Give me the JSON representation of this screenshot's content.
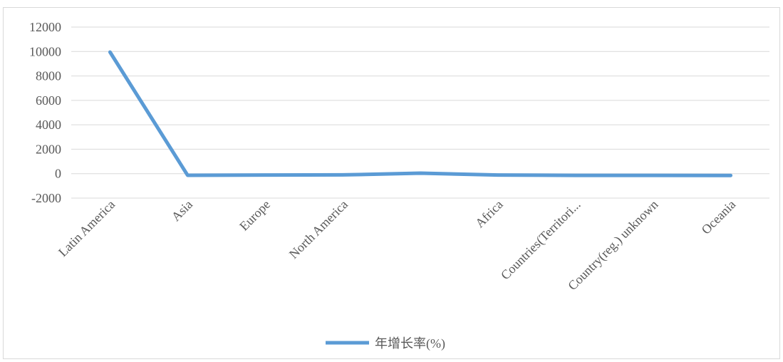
{
  "chart_data": {
    "type": "line",
    "categories": [
      "Latin America",
      "Asia",
      "Europe",
      "North America",
      "",
      "Africa",
      "Countries(Territori...",
      "Country(reg.) unknown",
      "Oceania"
    ],
    "series": [
      {
        "name": "年增长率(%)",
        "values": [
          9950,
          -130,
          -110,
          -100,
          40,
          -110,
          -140,
          -140,
          -150
        ]
      }
    ],
    "y_ticks": [
      "12000",
      "10000",
      "8000",
      "6000",
      "4000",
      "2000",
      "0",
      "-2000"
    ],
    "ylim": [
      -2000,
      12000
    ],
    "grid": true,
    "legend_position": "bottom",
    "colors": {
      "series": "#5b9bd5",
      "grid": "#d9d9d9",
      "text": "#595959"
    }
  }
}
